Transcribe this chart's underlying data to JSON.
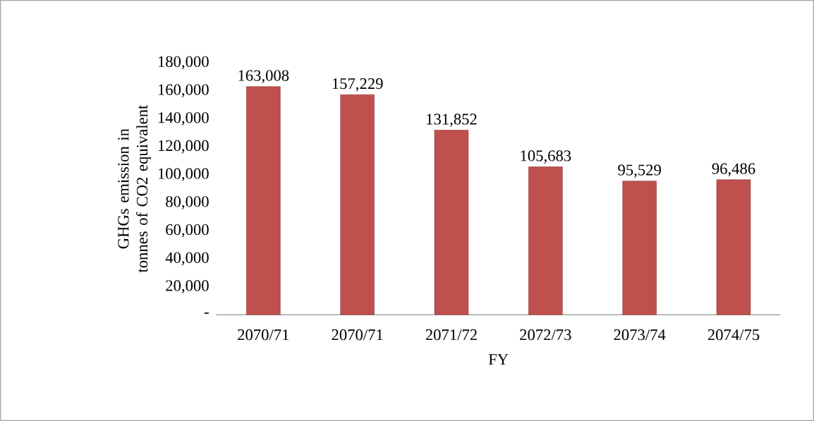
{
  "chart_data": {
    "type": "bar",
    "categories": [
      "2070/71",
      "2070/71",
      "2071/72",
      "2072/73",
      "2073/74",
      "2074/75"
    ],
    "values": [
      163008,
      157229,
      131852,
      105683,
      95529,
      96486
    ],
    "value_labels": [
      "163,008",
      "157,229",
      "131,852",
      "105,683",
      "95,529",
      "96,486"
    ],
    "color": "#c0504d",
    "xlabel": "FY",
    "ylabel": "GHGs emission in tonnes of CO2 equivalent",
    "ylim": [
      0,
      180000
    ],
    "yticks": [
      {
        "value": 0,
        "label": "-"
      },
      {
        "value": 20000,
        "label": "20,000"
      },
      {
        "value": 40000,
        "label": "40,000"
      },
      {
        "value": 60000,
        "label": "60,000"
      },
      {
        "value": 80000,
        "label": "80,000"
      },
      {
        "value": 100000,
        "label": "100,000"
      },
      {
        "value": 120000,
        "label": "120,000"
      },
      {
        "value": 140000,
        "label": "140,000"
      },
      {
        "value": 160000,
        "label": "160,000"
      },
      {
        "value": 180000,
        "label": "180,000"
      }
    ],
    "grid": false
  }
}
